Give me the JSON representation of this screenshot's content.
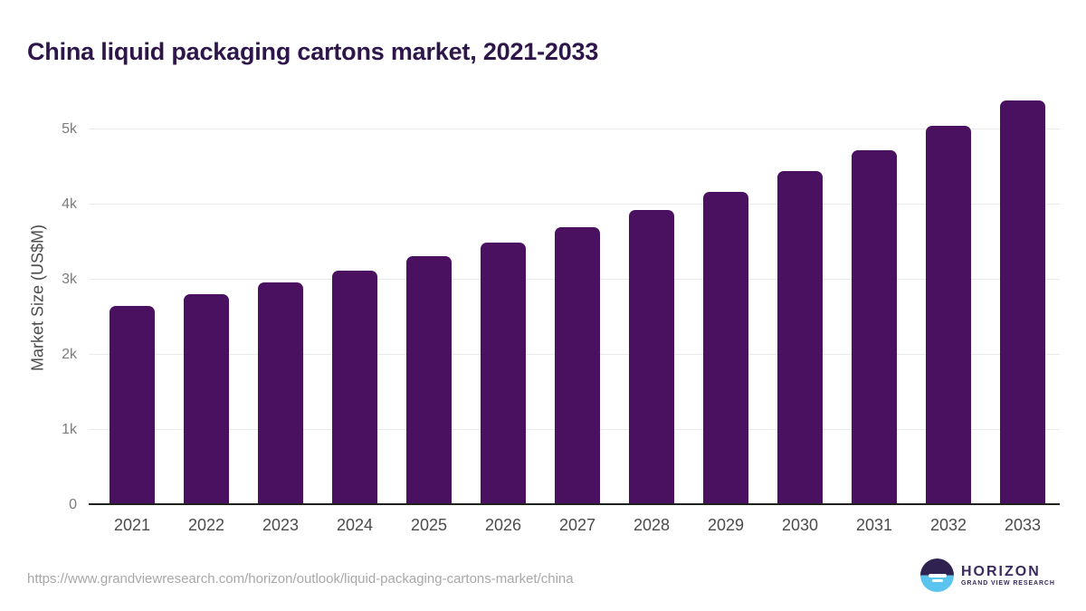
{
  "title": "China liquid packaging cartons market, 2021-2033",
  "chart_data": {
    "type": "bar",
    "title": "China liquid packaging cartons market, 2021-2033",
    "categories": [
      "2021",
      "2022",
      "2023",
      "2024",
      "2025",
      "2026",
      "2027",
      "2028",
      "2029",
      "2030",
      "2031",
      "2032",
      "2033"
    ],
    "values": [
      2650,
      2800,
      2960,
      3120,
      3310,
      3490,
      3695,
      3925,
      4165,
      4440,
      4720,
      5040,
      5380
    ],
    "xlabel": "",
    "ylabel": "Market Size (US$M)",
    "ylim": [
      0,
      5500
    ],
    "yticks": [
      {
        "label": "0",
        "value": 0
      },
      {
        "label": "1k",
        "value": 1000
      },
      {
        "label": "2k",
        "value": 2000
      },
      {
        "label": "3k",
        "value": 3000
      },
      {
        "label": "4k",
        "value": 4000
      },
      {
        "label": "5k",
        "value": 5000
      }
    ],
    "grid": true,
    "legend": false,
    "bar_color": "#4a1161"
  },
  "footer": {
    "source_url": "https://www.grandviewresearch.com/horizon/outlook/liquid-packaging-cartons-market/china",
    "logo": {
      "name": "HORIZON",
      "subtitle": "GRAND VIEW RESEARCH"
    }
  },
  "colors": {
    "title": "#2f164a",
    "bar": "#4a1161",
    "ylabel": "#4d4d4d",
    "ytick": "#7c7c7c",
    "xlabel": "#4c4c4c",
    "grid": "#eaeaea",
    "baseline": "#1f1f1f",
    "url": "#a8a8a8",
    "logo_text": "#3a2a5f",
    "logo_dark": "#2f2150",
    "logo_blue": "#5ac4ee"
  }
}
